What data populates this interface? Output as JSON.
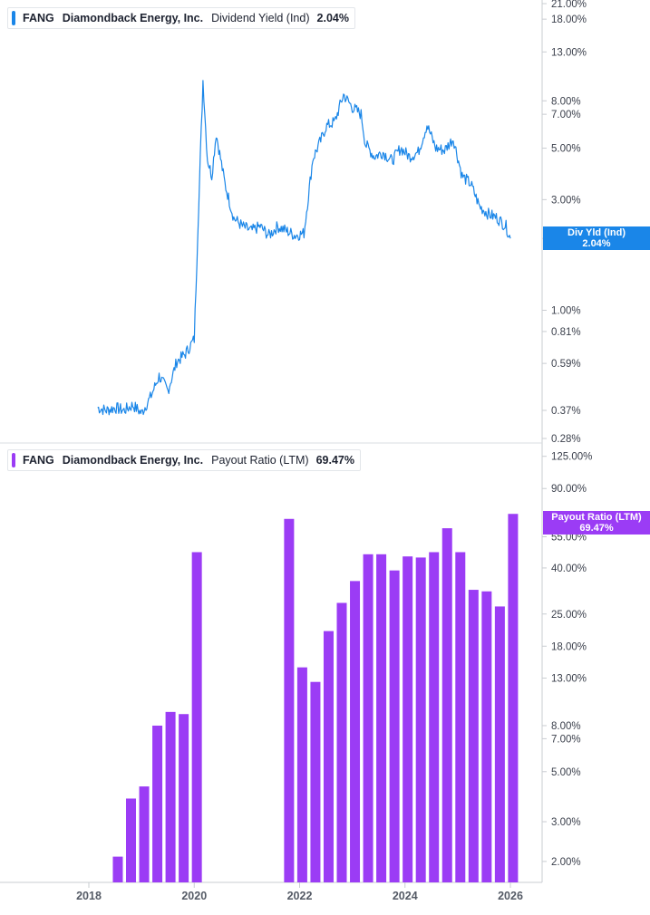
{
  "colors": {
    "yield_line": "#1a86e8",
    "payout_bar": "#9b3cf5",
    "axis": "#c9ccd1",
    "grid": "#eef0f2"
  },
  "panels": {
    "top": {
      "legend": {
        "ticker": "FANG",
        "company": "Diamondback Energy, Inc.",
        "metric": "Dividend Yield (Ind)",
        "value": "2.04%"
      },
      "flag": {
        "label": "Div Yld (Ind)",
        "value": "2.04%"
      }
    },
    "bottom": {
      "legend": {
        "ticker": "FANG",
        "company": "Diamondback Energy, Inc.",
        "metric": "Payout Ratio (LTM)",
        "value": "69.47%"
      },
      "flag": {
        "label": "Payout Ratio (LTM)",
        "value": "69.47%"
      }
    }
  },
  "chart_data": [
    {
      "type": "line",
      "title": "Dividend Yield (Ind)",
      "series": [
        {
          "name": "Dividend Yield (Ind)",
          "x": [
            "2018-03",
            "2018-05",
            "2018-07",
            "2018-09",
            "2018-11",
            "2019-01",
            "2019-03",
            "2019-05",
            "2019-07",
            "2019-09",
            "2019-11",
            "2020-01",
            "2020-02",
            "2020-03",
            "2020-04",
            "2020-05",
            "2020-06",
            "2020-08",
            "2020-10",
            "2020-12",
            "2021-02",
            "2021-04",
            "2021-06",
            "2021-08",
            "2021-10",
            "2021-12",
            "2022-02",
            "2022-04",
            "2022-06",
            "2022-07",
            "2022-09",
            "2022-11",
            "2023-01",
            "2023-03",
            "2023-04",
            "2023-06",
            "2023-08",
            "2023-10",
            "2023-12",
            "2024-02",
            "2024-04",
            "2024-06",
            "2024-08",
            "2024-10",
            "2024-12",
            "2025-02",
            "2025-04",
            "2025-06",
            "2025-08",
            "2025-10",
            "2025-12",
            "2026-01"
          ],
          "values": [
            0.38,
            0.37,
            0.38,
            0.37,
            0.39,
            0.36,
            0.42,
            0.52,
            0.45,
            0.6,
            0.65,
            0.75,
            2.8,
            9.8,
            4.5,
            3.8,
            5.8,
            3.5,
            2.5,
            2.3,
            2.2,
            2.3,
            2.1,
            2.3,
            2.2,
            2.1,
            2.15,
            4.5,
            5.5,
            6.2,
            6.5,
            8.5,
            7.5,
            7.0,
            5.2,
            4.6,
            4.8,
            4.4,
            5.0,
            4.6,
            4.8,
            6.3,
            5.0,
            4.9,
            5.5,
            3.8,
            3.5,
            2.8,
            2.6,
            2.5,
            2.3,
            2.04
          ]
        }
      ],
      "yscale": "log",
      "ylim": [
        0.28,
        21.0
      ],
      "y_ticks": [
        "21.00%",
        "18.00%",
        "13.00%",
        "8.00%",
        "7.00%",
        "5.00%",
        "3.00%",
        "2.04%",
        "1.00%",
        "0.81%",
        "0.59%",
        "0.37%",
        "0.28%"
      ]
    },
    {
      "type": "bar",
      "title": "Payout Ratio (LTM)",
      "series": [
        {
          "name": "Payout Ratio (LTM)",
          "x": [
            "2018-Q3",
            "2018-Q4",
            "2019-Q1",
            "2019-Q2",
            "2019-Q3",
            "2019-Q4",
            "2020-Q1",
            "2021-Q4",
            "2022-Q1",
            "2022-Q2",
            "2022-Q3",
            "2022-Q4",
            "2023-Q1",
            "2023-Q2",
            "2023-Q3",
            "2023-Q4",
            "2024-Q1",
            "2024-Q2",
            "2024-Q3",
            "2024-Q4",
            "2025-Q1",
            "2025-Q2",
            "2025-Q3",
            "2025-Q4",
            "2026-Q1"
          ],
          "values": [
            2.1,
            3.8,
            4.3,
            8.0,
            9.2,
            9.0,
            47,
            66,
            14.5,
            12.5,
            21,
            28,
            35,
            46,
            46,
            39,
            45,
            44.5,
            47,
            60,
            47,
            32,
            31.5,
            27,
            69.47
          ]
        }
      ],
      "yscale": "log",
      "ylim": [
        1.6,
        150
      ],
      "y_ticks": [
        "125.00%",
        "90.00%",
        "55.00%",
        "40.00%",
        "25.00%",
        "18.00%",
        "13.00%",
        "8.00%",
        "7.00%",
        "5.00%",
        "3.00%",
        "2.00%"
      ]
    }
  ],
  "x_axis": {
    "ticks": [
      "2018",
      "2020",
      "2022",
      "2024",
      "2026"
    ]
  }
}
